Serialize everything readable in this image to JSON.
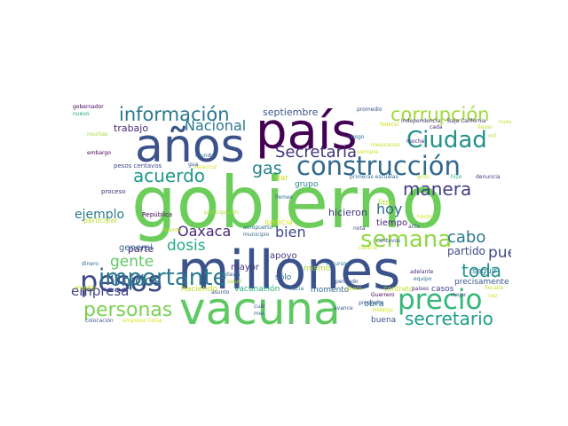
{
  "words": [
    {
      "id": "gobierno",
      "text": "gobierno",
      "color": "#6ccd5a"
    },
    {
      "id": "millones",
      "text": "millones",
      "color": "#3b528b"
    },
    {
      "id": "vacuna",
      "text": "vacuna",
      "color": "#5ec962"
    },
    {
      "id": "pais",
      "text": "país",
      "color": "#440154"
    },
    {
      "id": "anos",
      "text": "años",
      "color": "#3b528b"
    },
    {
      "id": "construccion",
      "text": "construcción",
      "color": "#31688e"
    },
    {
      "id": "precio",
      "text": "precio",
      "color": "#35b779"
    },
    {
      "id": "pesos",
      "text": "pesos",
      "color": "#3e4989"
    },
    {
      "id": "importante",
      "text": "importante",
      "color": "#2a788e"
    },
    {
      "id": "semana",
      "text": "semana",
      "color": "#90d743"
    },
    {
      "id": "ciudad",
      "text": "Ciudad",
      "color": "#21918c"
    },
    {
      "id": "corrupcion",
      "text": "corrupción",
      "color": "#a0da39"
    },
    {
      "id": "informacion",
      "text": "información",
      "color": "#2a788e"
    },
    {
      "id": "secretaria",
      "text": "Secretaría",
      "color": "#46327e"
    },
    {
      "id": "manera",
      "text": "manera",
      "color": "#433e85"
    },
    {
      "id": "nacional",
      "text": "Nacional",
      "color": "#2a788e"
    },
    {
      "id": "acuerdo",
      "text": "acuerdo",
      "color": "#1f988b"
    },
    {
      "id": "gas",
      "text": "gas",
      "color": "#26828e"
    },
    {
      "id": "personas",
      "text": "personas",
      "color": "#7ad151"
    },
    {
      "id": "secretario",
      "text": "secretario",
      "color": "#1f9e89"
    },
    {
      "id": "toda",
      "text": "toda",
      "color": "#21918c"
    },
    {
      "id": "cabo",
      "text": "cabo",
      "color": "#2a788e"
    },
    {
      "id": "pueblo",
      "text": "pueblo",
      "color": "#3e4989"
    },
    {
      "id": "unidos",
      "text": "Unidos",
      "color": "#31688e"
    },
    {
      "id": "gente",
      "text": "gente",
      "color": "#5ec962"
    },
    {
      "id": "dosis",
      "text": "dosis",
      "color": "#22a884"
    },
    {
      "id": "oaxaca",
      "text": "Oaxaca",
      "color": "#482878"
    },
    {
      "id": "bien",
      "text": "bien",
      "color": "#3e4989"
    },
    {
      "id": "hoy",
      "text": "hoy",
      "color": "#31688e"
    },
    {
      "id": "ejemplo",
      "text": "ejemplo",
      "color": "#2a788e"
    },
    {
      "id": "empresa",
      "text": "empresa",
      "color": "#414487"
    },
    {
      "id": "partido",
      "text": "partido",
      "color": "#3e4989"
    },
    {
      "id": "trabajo",
      "text": "trabajo",
      "color": "#472d7b"
    },
    {
      "id": "septiembre",
      "text": "septiembre",
      "color": "#39568c"
    },
    {
      "id": "parte",
      "text": "parte",
      "color": "#481f70"
    },
    {
      "id": "general",
      "text": "general",
      "color": "#31688e"
    },
    {
      "id": "hicieron",
      "text": "hicieron",
      "color": "#443983"
    },
    {
      "id": "tiempo",
      "text": "tiempo",
      "color": "#482173"
    },
    {
      "id": "apoyo",
      "text": "apoyo",
      "color": "#453781"
    },
    {
      "id": "mayor",
      "text": "mayor",
      "color": "#46337e"
    },
    {
      "id": "haciendo",
      "text": "haciendo",
      "color": "#c2df23"
    },
    {
      "id": "vacunacion",
      "text": "vacunación",
      "color": "#29af7f"
    },
    {
      "id": "momento",
      "text": "momento",
      "color": "#31688e"
    },
    {
      "id": "obra",
      "text": "obra",
      "color": "#2a788e"
    },
    {
      "id": "buena",
      "text": "buena",
      "color": "#3b528b"
    },
    {
      "id": "seguir",
      "text": "seguir",
      "color": "#2d708e"
    },
    {
      "id": "precisamente",
      "text": "precisamente",
      "color": "#39568c"
    },
    {
      "id": "casos",
      "text": "casos",
      "color": "#414487"
    },
    {
      "id": "grupo",
      "text": "grupo",
      "color": "#26828e"
    },
    {
      "id": "dar",
      "text": "dar",
      "color": "#c8e020"
    },
    {
      "id": "justicia",
      "text": "justicia",
      "color": "#d8e219"
    },
    {
      "id": "mismo",
      "text": "mismo",
      "color": "#a5db36"
    },
    {
      "id": "litro",
      "text": "litro",
      "color": "#b5de2b"
    },
    {
      "id": "solo",
      "text": "sólo",
      "color": "#31688e"
    },
    {
      "id": "contrato",
      "text": "contrato",
      "color": "#bddf26"
    },
    {
      "id": "medio",
      "text": "medio",
      "color": "#c2df23"
    },
    {
      "id": "republica",
      "text": "República",
      "color": "#440154"
    },
    {
      "id": "proceso",
      "text": "proceso",
      "color": "#472d7b"
    },
    {
      "id": "participar",
      "text": "participar",
      "color": "#bddf26"
    },
    {
      "id": "pesoscentavos",
      "text": "pesos centavos",
      "color": "#3e4989"
    },
    {
      "id": "veracruz",
      "text": "Veracruz",
      "color": "#d0e11c"
    },
    {
      "id": "participacion",
      "text": "participación",
      "color": "#a8db34"
    },
    {
      "id": "mundo",
      "text": "mundo",
      "color": "#31688e"
    },
    {
      "id": "embargo",
      "text": "embargo",
      "color": "#440154"
    },
    {
      "id": "gobernador",
      "text": "gobernador",
      "color": "#440154"
    },
    {
      "id": "nuevo",
      "text": "nuevo",
      "color": "#1f9e89"
    },
    {
      "id": "muchas",
      "text": "muchas",
      "color": "#a0da39"
    },
    {
      "id": "promedio",
      "text": "promedio",
      "color": "#3b528b"
    },
    {
      "id": "independencia",
      "text": "Independencia",
      "color": "#46327e"
    },
    {
      "id": "bajacalifornia",
      "text": "Baja California",
      "color": "#482878"
    },
    {
      "id": "federal",
      "text": "federal",
      "color": "#cde11d"
    },
    {
      "id": "riesgo",
      "text": "riesgo",
      "color": "#2c728e"
    },
    {
      "id": "mexicanos",
      "text": "mexicanos",
      "color": "#c2df23"
    },
    {
      "id": "siempre",
      "text": "siempre",
      "color": "#d0e11c"
    },
    {
      "id": "primerasescuelas",
      "text": "primeras escuelas",
      "color": "#31688e"
    },
    {
      "id": "grito",
      "text": "grito",
      "color": "#bddf26"
    },
    {
      "id": "hizo",
      "text": "hizo",
      "color": "#29af7f"
    },
    {
      "id": "denuncia",
      "text": "denuncia",
      "color": "#46327e"
    },
    {
      "id": "cada",
      "text": "cada",
      "color": "#481f70"
    },
    {
      "id": "llevar",
      "text": "llevar",
      "color": "#c8e020"
    },
    {
      "id": "mil",
      "text": "mil",
      "color": "#b2dd2d"
    },
    {
      "id": "moche",
      "text": "moche",
      "color": "#472d7b"
    },
    {
      "id": "nueve",
      "text": "nueve",
      "color": "#c2df23"
    },
    {
      "id": "cuenta",
      "text": "cuenta",
      "color": "#bddf26"
    },
    {
      "id": "municipio",
      "text": "municipio",
      "color": "#31688e"
    },
    {
      "id": "aeropuerto",
      "text": "aeropuerto",
      "color": "#2d708e"
    },
    {
      "id": "nota",
      "text": "nota",
      "color": "#3e4989"
    },
    {
      "id": "acto",
      "text": "acto",
      "color": "#3b528b"
    },
    {
      "id": "hecho",
      "text": "hecho",
      "color": "#d8e219"
    },
    {
      "id": "central",
      "text": "central",
      "color": "#c8e020"
    },
    {
      "id": "centavos",
      "text": "centavos",
      "color": "#3b528b"
    },
    {
      "id": "adelante",
      "text": "adelante",
      "color": "#482878"
    },
    {
      "id": "equipo",
      "text": "equipo",
      "color": "#2c728e"
    },
    {
      "id": "paises",
      "text": "países",
      "color": "#472d7b"
    },
    {
      "id": "fiscalia",
      "text": "fiscalía",
      "color": "#c2df23"
    },
    {
      "id": "vez",
      "text": "vez",
      "color": "#c8e020"
    },
    {
      "id": "mejor",
      "text": "mejor",
      "color": "#3b528b"
    },
    {
      "id": "guerrero",
      "text": "Guerrero",
      "color": "#440154"
    },
    {
      "id": "proposito",
      "text": "propósito",
      "color": "#3b528b"
    },
    {
      "id": "hidalgo",
      "text": "Hidalgo",
      "color": "#d8e219"
    },
    {
      "id": "recursos",
      "text": "recursos",
      "color": "#2a788e"
    },
    {
      "id": "hacia",
      "text": "hacia",
      "color": "#2d708e"
    },
    {
      "id": "avance",
      "text": "avance",
      "color": "#3b528b"
    },
    {
      "id": "asunto",
      "text": "asunto",
      "color": "#3b528b"
    },
    {
      "id": "todavia",
      "text": "todavía",
      "color": "#31688e"
    },
    {
      "id": "salud",
      "text": "salud",
      "color": "#b5de2b"
    },
    {
      "id": "cual",
      "text": "cuál",
      "color": "#3e4989"
    },
    {
      "id": "mes",
      "text": "mes",
      "color": "#31688e"
    },
    {
      "id": "dinero",
      "text": "dinero",
      "color": "#31688e"
    },
    {
      "id": "colocacion",
      "text": "colocación",
      "color": "#3b528b"
    },
    {
      "id": "empresacelsa",
      "text": "empresa Celsa",
      "color": "#d8e219"
    },
    {
      "id": "gua",
      "text": "gua",
      "color": "#3e4989"
    },
    {
      "id": "pemex",
      "text": "Pemex",
      "color": "#2d708e"
    },
    {
      "id": "pensado",
      "text": "pensado",
      "color": "#3b528b"
    },
    {
      "id": "ahora",
      "text": "ahora",
      "color": "#c8e020"
    }
  ]
}
